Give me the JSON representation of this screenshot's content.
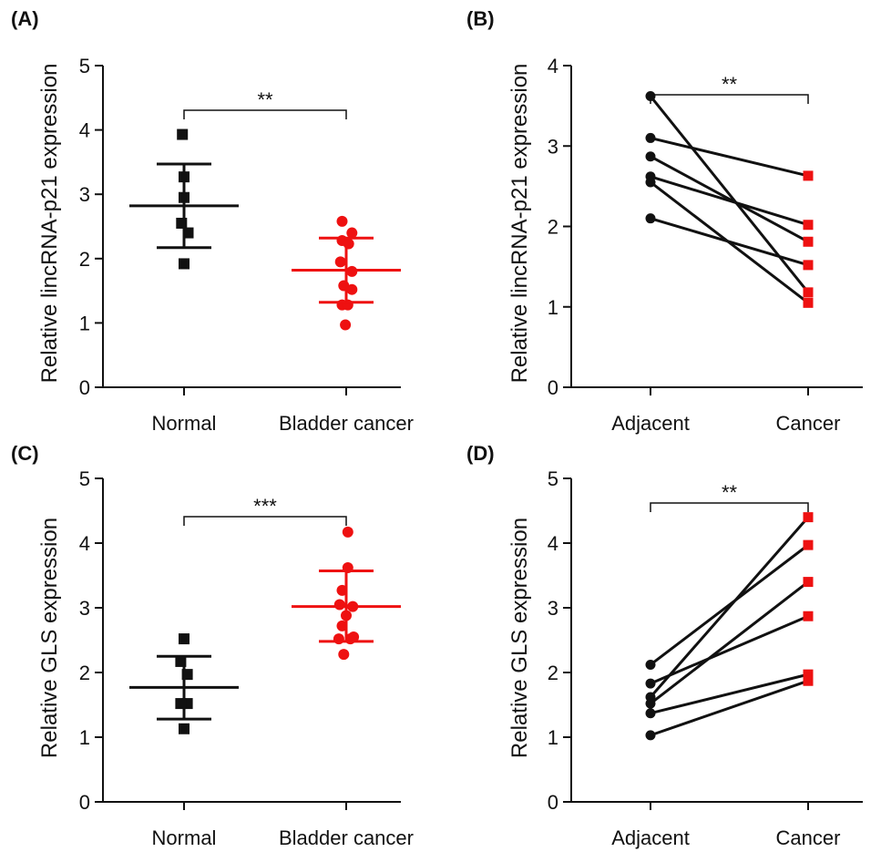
{
  "colors": {
    "black": "#111111",
    "red": "#ee1111"
  },
  "chart_data": [
    {
      "type": "scatter",
      "panel": "(A)",
      "ylabel": "Relative lincRNA-p21 expression",
      "ylim": [
        0,
        5
      ],
      "yticks": [
        "0",
        "1",
        "2",
        "3",
        "4",
        "5"
      ],
      "categories": [
        "Normal",
        "Bladder cancer"
      ],
      "significance": "**",
      "groups": [
        {
          "category": "Normal",
          "marker": "square",
          "color": "#111111",
          "mean": 2.82,
          "sd_low": 2.17,
          "sd_high": 3.47,
          "points": [
            [
              -0.02,
              3.93
            ],
            [
              0.0,
              3.27
            ],
            [
              0.0,
              2.95
            ],
            [
              -0.03,
              2.55
            ],
            [
              0.05,
              2.4
            ],
            [
              0.0,
              1.92
            ]
          ]
        },
        {
          "category": "Bladder cancer",
          "marker": "circle",
          "color": "#ee1111",
          "mean": 1.82,
          "sd_low": 1.32,
          "sd_high": 2.32,
          "points": [
            [
              -0.05,
              2.58
            ],
            [
              0.07,
              2.4
            ],
            [
              -0.05,
              2.28
            ],
            [
              0.03,
              2.23
            ],
            [
              -0.07,
              1.95
            ],
            [
              0.07,
              1.8
            ],
            [
              -0.03,
              1.58
            ],
            [
              0.07,
              1.52
            ],
            [
              -0.05,
              1.28
            ],
            [
              0.02,
              1.28
            ],
            [
              -0.01,
              0.97
            ]
          ]
        }
      ]
    },
    {
      "type": "line",
      "panel": "(B)",
      "ylabel": "Relative lincRNA-p21 expression",
      "ylim": [
        0,
        4
      ],
      "yticks": [
        "0",
        "1",
        "2",
        "3",
        "4"
      ],
      "categories": [
        "Adjacent",
        "Cancer"
      ],
      "significance": "**",
      "pairs": [
        [
          3.62,
          1.18
        ],
        [
          3.1,
          2.63
        ],
        [
          2.87,
          1.81
        ],
        [
          2.62,
          2.02
        ],
        [
          2.55,
          1.05
        ],
        [
          2.1,
          1.52
        ]
      ]
    },
    {
      "type": "scatter",
      "panel": "(C)",
      "ylabel": "Relative GLS expression",
      "ylim": [
        0,
        5
      ],
      "yticks": [
        "0",
        "1",
        "2",
        "3",
        "4",
        "5"
      ],
      "categories": [
        "Normal",
        "Bladder cancer"
      ],
      "significance": "***",
      "groups": [
        {
          "category": "Normal",
          "marker": "square",
          "color": "#111111",
          "mean": 1.77,
          "sd_low": 1.28,
          "sd_high": 2.25,
          "points": [
            [
              0.0,
              2.52
            ],
            [
              -0.04,
              2.17
            ],
            [
              0.04,
              1.97
            ],
            [
              0.04,
              1.52
            ],
            [
              -0.04,
              1.52
            ],
            [
              0.0,
              1.13
            ]
          ]
        },
        {
          "category": "Bladder cancer",
          "marker": "circle",
          "color": "#ee1111",
          "mean": 3.02,
          "sd_low": 2.48,
          "sd_high": 3.57,
          "points": [
            [
              0.02,
              4.17
            ],
            [
              0.02,
              3.62
            ],
            [
              -0.05,
              3.27
            ],
            [
              -0.08,
              3.05
            ],
            [
              0.08,
              3.02
            ],
            [
              0.0,
              2.88
            ],
            [
              -0.05,
              2.72
            ],
            [
              0.09,
              2.55
            ],
            [
              -0.09,
              2.52
            ],
            [
              0.05,
              2.52
            ],
            [
              -0.03,
              2.28
            ]
          ]
        }
      ]
    },
    {
      "type": "line",
      "panel": "(D)",
      "ylabel": "Relative GLS expression",
      "ylim": [
        0,
        5
      ],
      "yticks": [
        "0",
        "1",
        "2",
        "3",
        "4",
        "5"
      ],
      "categories": [
        "Adjacent",
        "Cancer"
      ],
      "significance": "**",
      "pairs": [
        [
          2.12,
          3.97
        ],
        [
          1.83,
          2.87
        ],
        [
          1.62,
          4.4
        ],
        [
          1.52,
          3.4
        ],
        [
          1.37,
          1.97
        ],
        [
          1.03,
          1.87
        ]
      ]
    }
  ]
}
